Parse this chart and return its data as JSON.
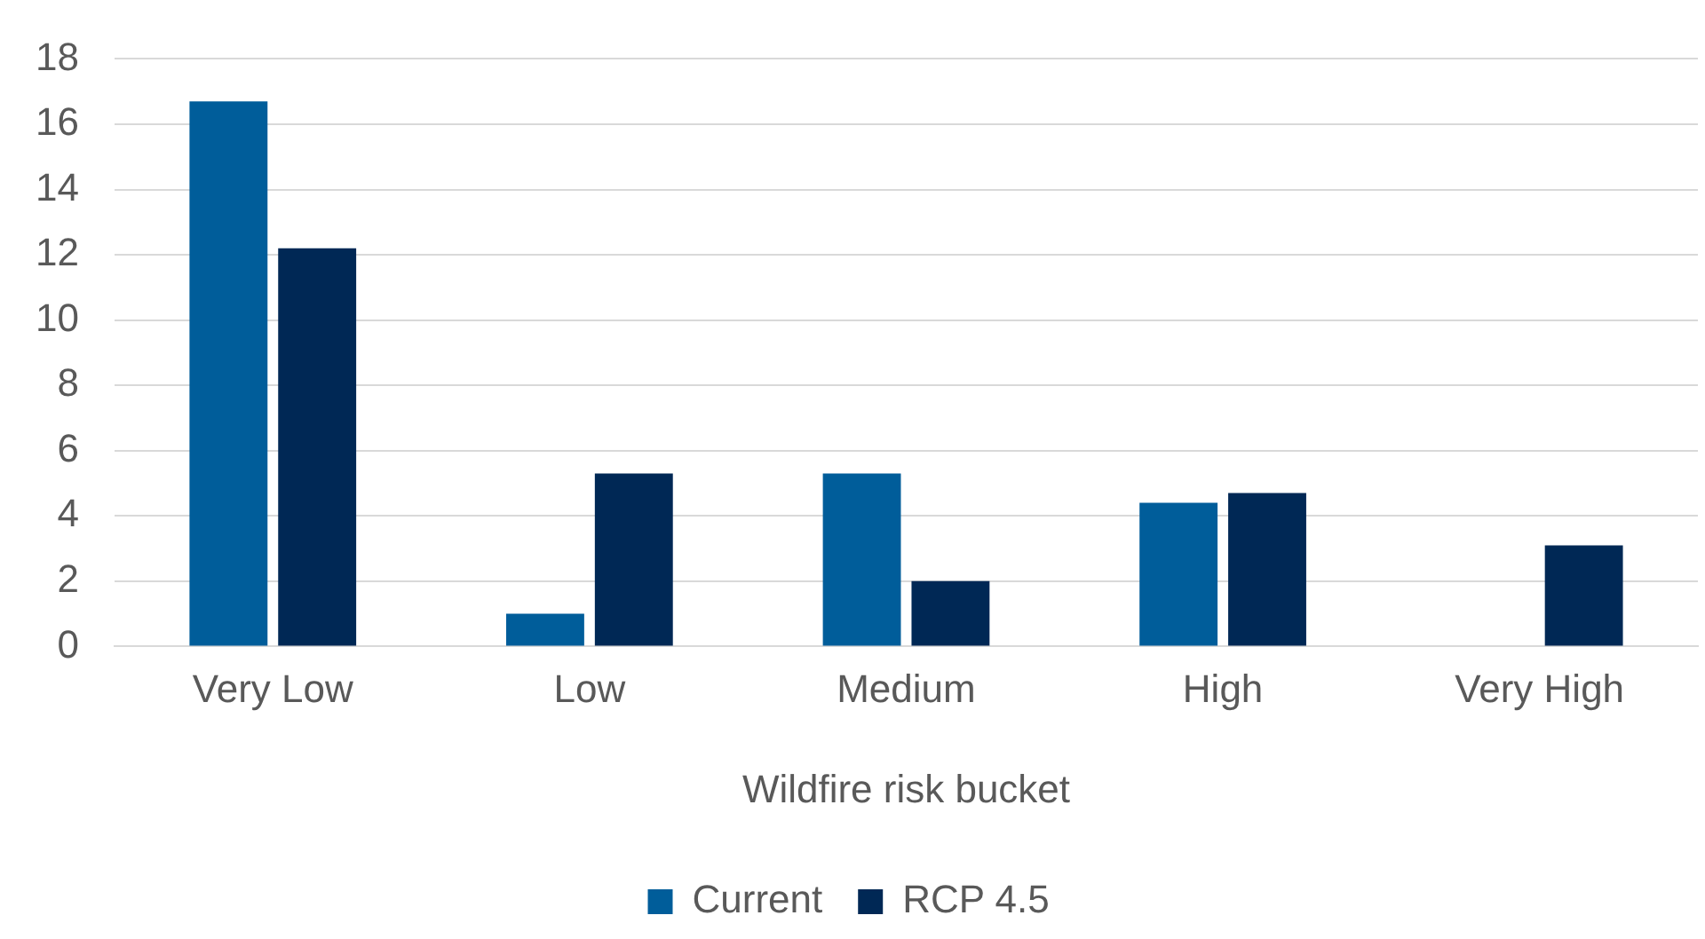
{
  "chart_data": {
    "type": "bar",
    "xlabel": "Wildfire risk bucket",
    "categories": [
      "Very Low",
      "Low",
      "Medium",
      "High",
      "Very High"
    ],
    "series": [
      {
        "name": "Current",
        "color": "#005d9a",
        "values": [
          16.7,
          1.0,
          5.3,
          4.4,
          0
        ]
      },
      {
        "name": "RCP 4.5",
        "color": "#002855",
        "values": [
          12.2,
          5.3,
          2.0,
          4.7,
          3.1
        ]
      }
    ],
    "ylim": [
      0,
      18
    ],
    "yticks": [
      0,
      2,
      4,
      6,
      8,
      10,
      12,
      14,
      16,
      18
    ],
    "grid": "y",
    "legend": "bottom"
  }
}
